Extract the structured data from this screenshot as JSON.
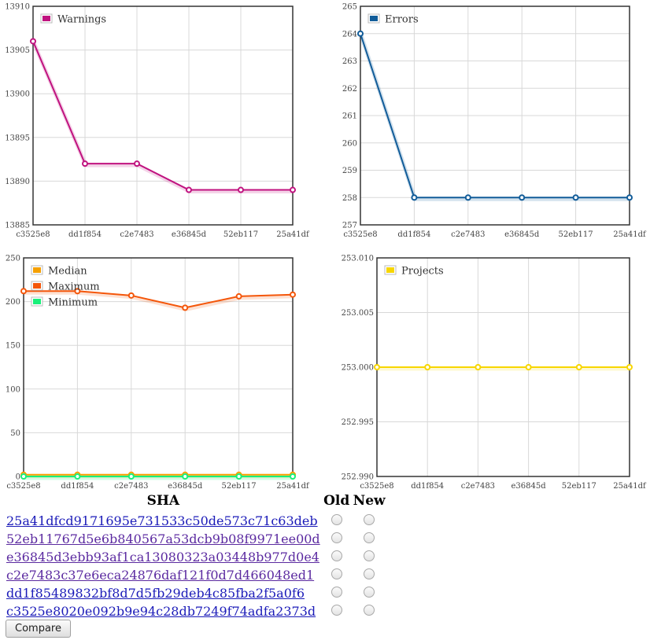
{
  "colors": {
    "warnings": "#c0127f",
    "errors": "#115c99",
    "median": "#f5a000",
    "maximum": "#f4560a",
    "minimum": "#19f07a",
    "projects": "#f7d600"
  },
  "chart_data": [
    {
      "type": "line",
      "categories": [
        "c3525e8",
        "dd1f854",
        "c2e7483",
        "e36845d",
        "52eb117",
        "25a41df"
      ],
      "series": [
        {
          "name": "Warnings",
          "values": [
            13906,
            13892,
            13892,
            13889,
            13889,
            13889
          ]
        }
      ],
      "yticks": [
        "13885",
        "13890",
        "13895",
        "13900",
        "13905",
        "13910"
      ],
      "ylim": [
        13885,
        13910
      ],
      "grid": true,
      "legend": "top-left"
    },
    {
      "type": "line",
      "categories": [
        "c3525e8",
        "dd1f854",
        "c2e7483",
        "e36845d",
        "52eb117",
        "25a41df"
      ],
      "series": [
        {
          "name": "Errors",
          "values": [
            264,
            258,
            258,
            258,
            258,
            258
          ]
        }
      ],
      "yticks": [
        "257",
        "258",
        "259",
        "260",
        "261",
        "262",
        "263",
        "264",
        "265"
      ],
      "ylim": [
        257,
        265
      ],
      "grid": true,
      "legend": "top-left"
    },
    {
      "type": "line",
      "categories": [
        "c3525e8",
        "dd1f854",
        "c2e7483",
        "e36845d",
        "52eb117",
        "25a41df"
      ],
      "series": [
        {
          "name": "Median",
          "values": [
            2,
            2,
            2,
            2,
            2,
            2
          ]
        },
        {
          "name": "Maximum",
          "values": [
            212,
            212,
            207,
            193,
            206,
            208
          ]
        },
        {
          "name": "Minimum",
          "values": [
            0,
            0,
            0,
            0,
            0,
            0
          ]
        }
      ],
      "yticks": [
        "0",
        "50",
        "100",
        "150",
        "200",
        "250"
      ],
      "ylim": [
        0,
        250
      ],
      "grid": true,
      "legend": "top-left"
    },
    {
      "type": "line",
      "categories": [
        "c3525e8",
        "dd1f854",
        "c2e7483",
        "e36845d",
        "52eb117",
        "25a41df"
      ],
      "series": [
        {
          "name": "Projects",
          "values": [
            253,
            253,
            253,
            253,
            253,
            253
          ]
        }
      ],
      "yticks": [
        "252.990",
        "252.995",
        "253.000",
        "253.005",
        "253.010"
      ],
      "ylim": [
        252.99,
        253.01
      ],
      "grid": true,
      "legend": "top-left"
    }
  ],
  "table": {
    "headers": {
      "sha": "SHA",
      "old": "Old",
      "new": "New"
    },
    "rows": [
      {
        "sha": "25a41dfcd9171695e731533c50de573c71c63deb",
        "visited": false
      },
      {
        "sha": "52eb11767d5e6b840567a53dcb9b08f9971ee00d",
        "visited": true
      },
      {
        "sha": "e36845d3ebb93af1ca13080323a03448b977d0e4",
        "visited": true
      },
      {
        "sha": "c2e7483c37e6eca24876daf121f0d7d466048ed1",
        "visited": true
      },
      {
        "sha": "dd1f85489832bf8d7d5fb29deb4c85fba2f5a0f6",
        "visited": false
      },
      {
        "sha": "c3525e8020e092b9e94c28db7249f74adfa2373d",
        "visited": false
      }
    ]
  },
  "compare_label": "Compare"
}
